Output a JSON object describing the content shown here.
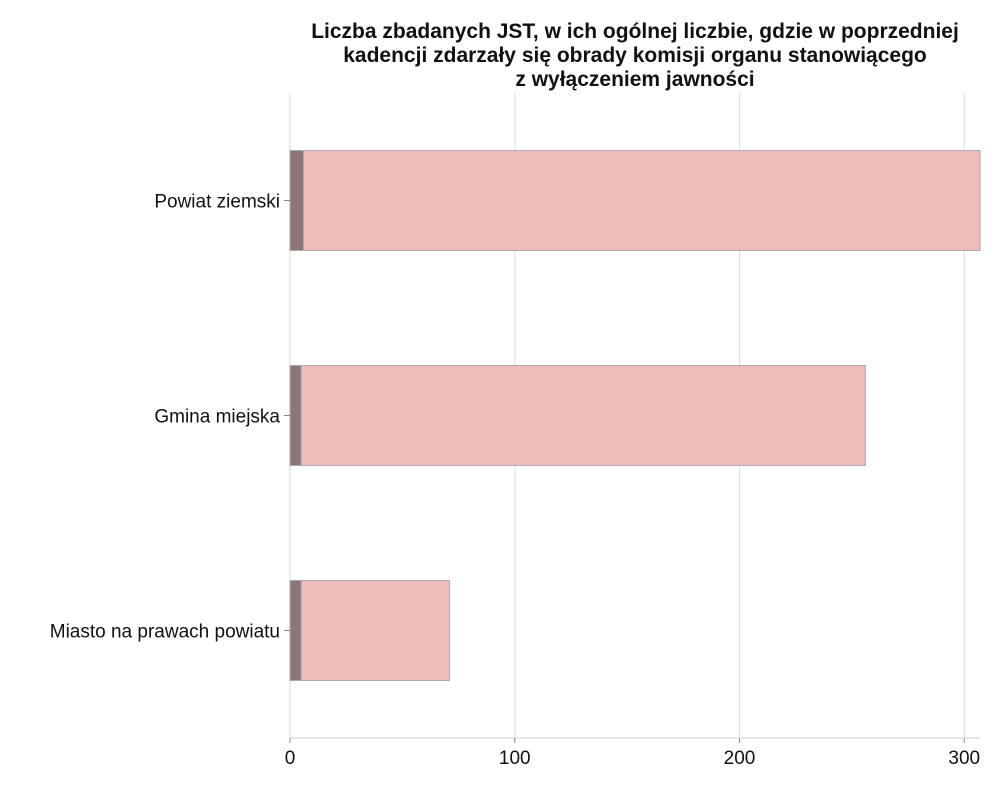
{
  "chart_data": {
    "type": "bar",
    "orientation": "horizontal",
    "stacked": true,
    "title_lines": [
      "Liczba zbadanych JST, w ich ogólnej liczbie, gdzie w poprzedniej",
      "kadencji zdarzały się obrady komisji organu stanowiącego",
      "z wyłączeniem jawności"
    ],
    "categories": [
      "Powiat ziemski",
      "Gmina miejska",
      "Miasto na prawach powiatu"
    ],
    "series": [
      {
        "values": [
          6,
          5,
          5
        ],
        "color": "#8c7575"
      },
      {
        "values": [
          301,
          251,
          66
        ],
        "color": "#efbbbb"
      }
    ],
    "xlim": [
      0,
      307
    ],
    "xticks": [
      0,
      100,
      200,
      300
    ],
    "grid": true,
    "bar_edge_color": "#aaaaaa",
    "grid_color": "#dddddd"
  }
}
